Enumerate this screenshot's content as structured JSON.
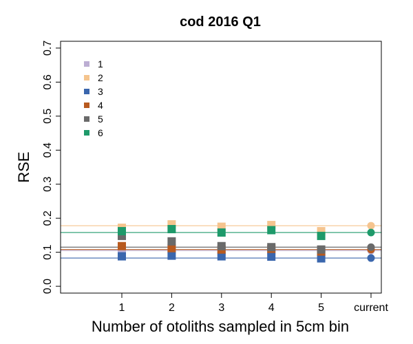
{
  "chart_data": {
    "type": "scatter",
    "title": "cod 2016 Q1",
    "xlabel": "Number of otoliths sampled in 5cm bin",
    "ylabel": "RSE",
    "categories": [
      "1",
      "2",
      "3",
      "4",
      "5",
      "current"
    ],
    "ylim": [
      -0.02,
      0.72
    ],
    "yticks": [
      0.0,
      0.1,
      0.2,
      0.3,
      0.4,
      0.5,
      0.6,
      0.7
    ],
    "ytick_labels": [
      "0.0",
      "0.1",
      "0.2",
      "0.3",
      "0.4",
      "0.5",
      "0.6",
      "0.7"
    ],
    "legend_position": "top-left",
    "series": [
      {
        "name": "1",
        "color": "#BCAED3",
        "values": [
          0.105,
          0.108,
          0.102,
          0.104,
          0.1,
          0.105
        ],
        "reference": 0.105
      },
      {
        "name": "2",
        "color": "#F5C48E",
        "values": [
          0.172,
          0.182,
          0.175,
          0.18,
          0.162,
          0.178
        ],
        "reference": 0.178
      },
      {
        "name": "3",
        "color": "#3A66AD",
        "values": [
          0.088,
          0.09,
          0.088,
          0.087,
          0.082,
          0.083
        ],
        "reference": 0.083
      },
      {
        "name": "4",
        "color": "#B85A1F",
        "values": [
          0.118,
          0.112,
          0.108,
          0.11,
          0.102,
          0.108
        ],
        "reference": 0.108
      },
      {
        "name": "5",
        "color": "#6A6A6A",
        "values": [
          0.148,
          0.132,
          0.118,
          0.115,
          0.108,
          0.115
        ],
        "reference": 0.115
      },
      {
        "name": "6",
        "color": "#1E9A6A",
        "values": [
          0.162,
          0.168,
          0.158,
          0.165,
          0.148,
          0.158
        ],
        "reference": 0.158
      }
    ]
  }
}
